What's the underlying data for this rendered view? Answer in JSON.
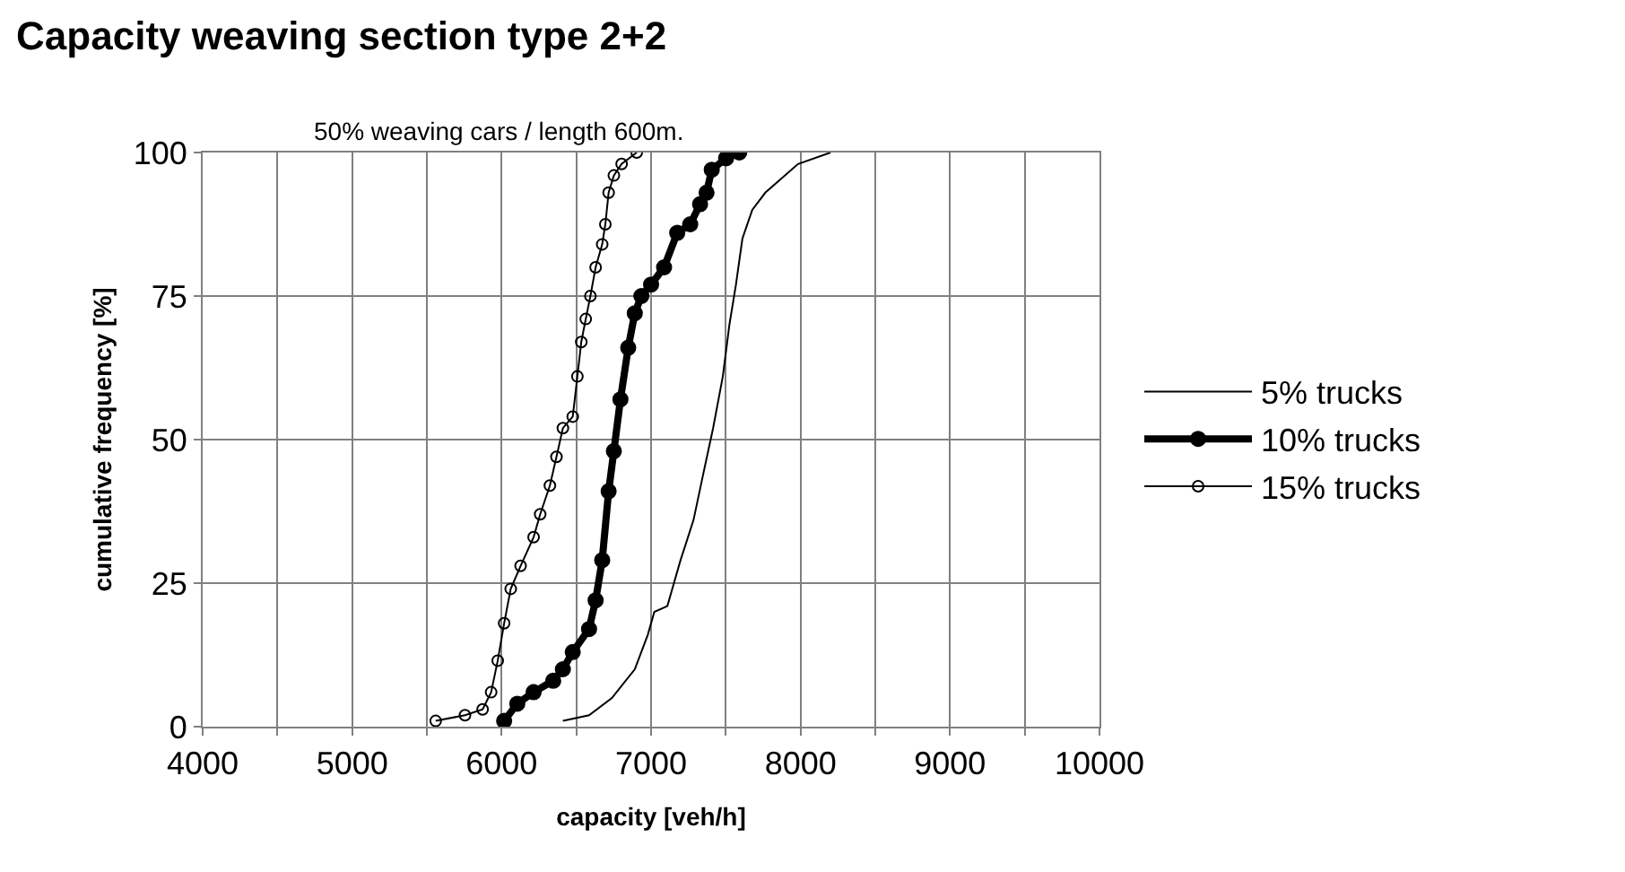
{
  "chart_data": {
    "type": "line",
    "title": "Capacity weaving section type 2+2",
    "subtitle": "50% weaving cars / length 600m.",
    "xlabel": "capacity [veh/h]",
    "ylabel": "cumulative frequency [%]",
    "xlim": [
      4000,
      10000
    ],
    "xticks": [
      4000,
      {
        "value": 4500,
        "label": null
      },
      5000,
      {
        "value": 5500,
        "label": null
      },
      6000,
      {
        "value": 6500,
        "label": null
      },
      7000,
      {
        "value": 7500,
        "label": null
      },
      8000,
      {
        "value": 8500,
        "label": null
      },
      9000,
      {
        "value": 9500,
        "label": null
      },
      10000
    ],
    "ylim": [
      0,
      100
    ],
    "yticks": [
      0,
      25,
      50,
      75,
      100
    ],
    "grid": true,
    "legend": "right",
    "series": [
      {
        "name": "5% trucks",
        "color": "#000000",
        "marker": "none",
        "x": [
          6410,
          6585,
          6738,
          6891,
          6978,
          7022,
          7109,
          7197,
          7284,
          7349,
          7415,
          7480,
          7524,
          7568,
          7611,
          7677,
          7764,
          7983,
          8201
        ],
        "values": [
          1,
          2,
          5,
          10,
          16,
          20,
          21,
          29,
          36,
          44,
          52,
          61,
          70,
          77,
          85,
          90,
          93,
          98,
          100
        ]
      },
      {
        "name": "10% trucks",
        "color": "#000000",
        "marker": "circle",
        "x": [
          6017,
          6105,
          6214,
          6345,
          6410,
          6476,
          6585,
          6629,
          6673,
          6716,
          6751,
          6795,
          6847,
          6891,
          6935,
          7000,
          7087,
          7175,
          7262,
          7328,
          7371,
          7406,
          7502,
          7590
        ],
        "values": [
          1,
          4,
          6,
          8,
          10,
          13,
          17,
          22,
          29,
          41,
          48,
          57,
          66,
          72,
          75,
          77,
          80,
          86,
          87.5,
          91,
          93,
          97,
          99,
          100
        ]
      },
      {
        "name": "15% trucks",
        "color": "#000000",
        "marker": "circle",
        "x": [
          5559,
          5755,
          5873,
          5930,
          5974,
          6017,
          6061,
          6127,
          6214,
          6258,
          6323,
          6367,
          6410,
          6476,
          6507,
          6533,
          6563,
          6594,
          6629,
          6673,
          6694,
          6716,
          6751,
          6803,
          6904
        ],
        "values": [
          1,
          2,
          3,
          6,
          11.5,
          18,
          24,
          28,
          33,
          37,
          42,
          47,
          52,
          54,
          61,
          67,
          71,
          75,
          80,
          84,
          87.5,
          93,
          96,
          98,
          100
        ]
      }
    ]
  }
}
